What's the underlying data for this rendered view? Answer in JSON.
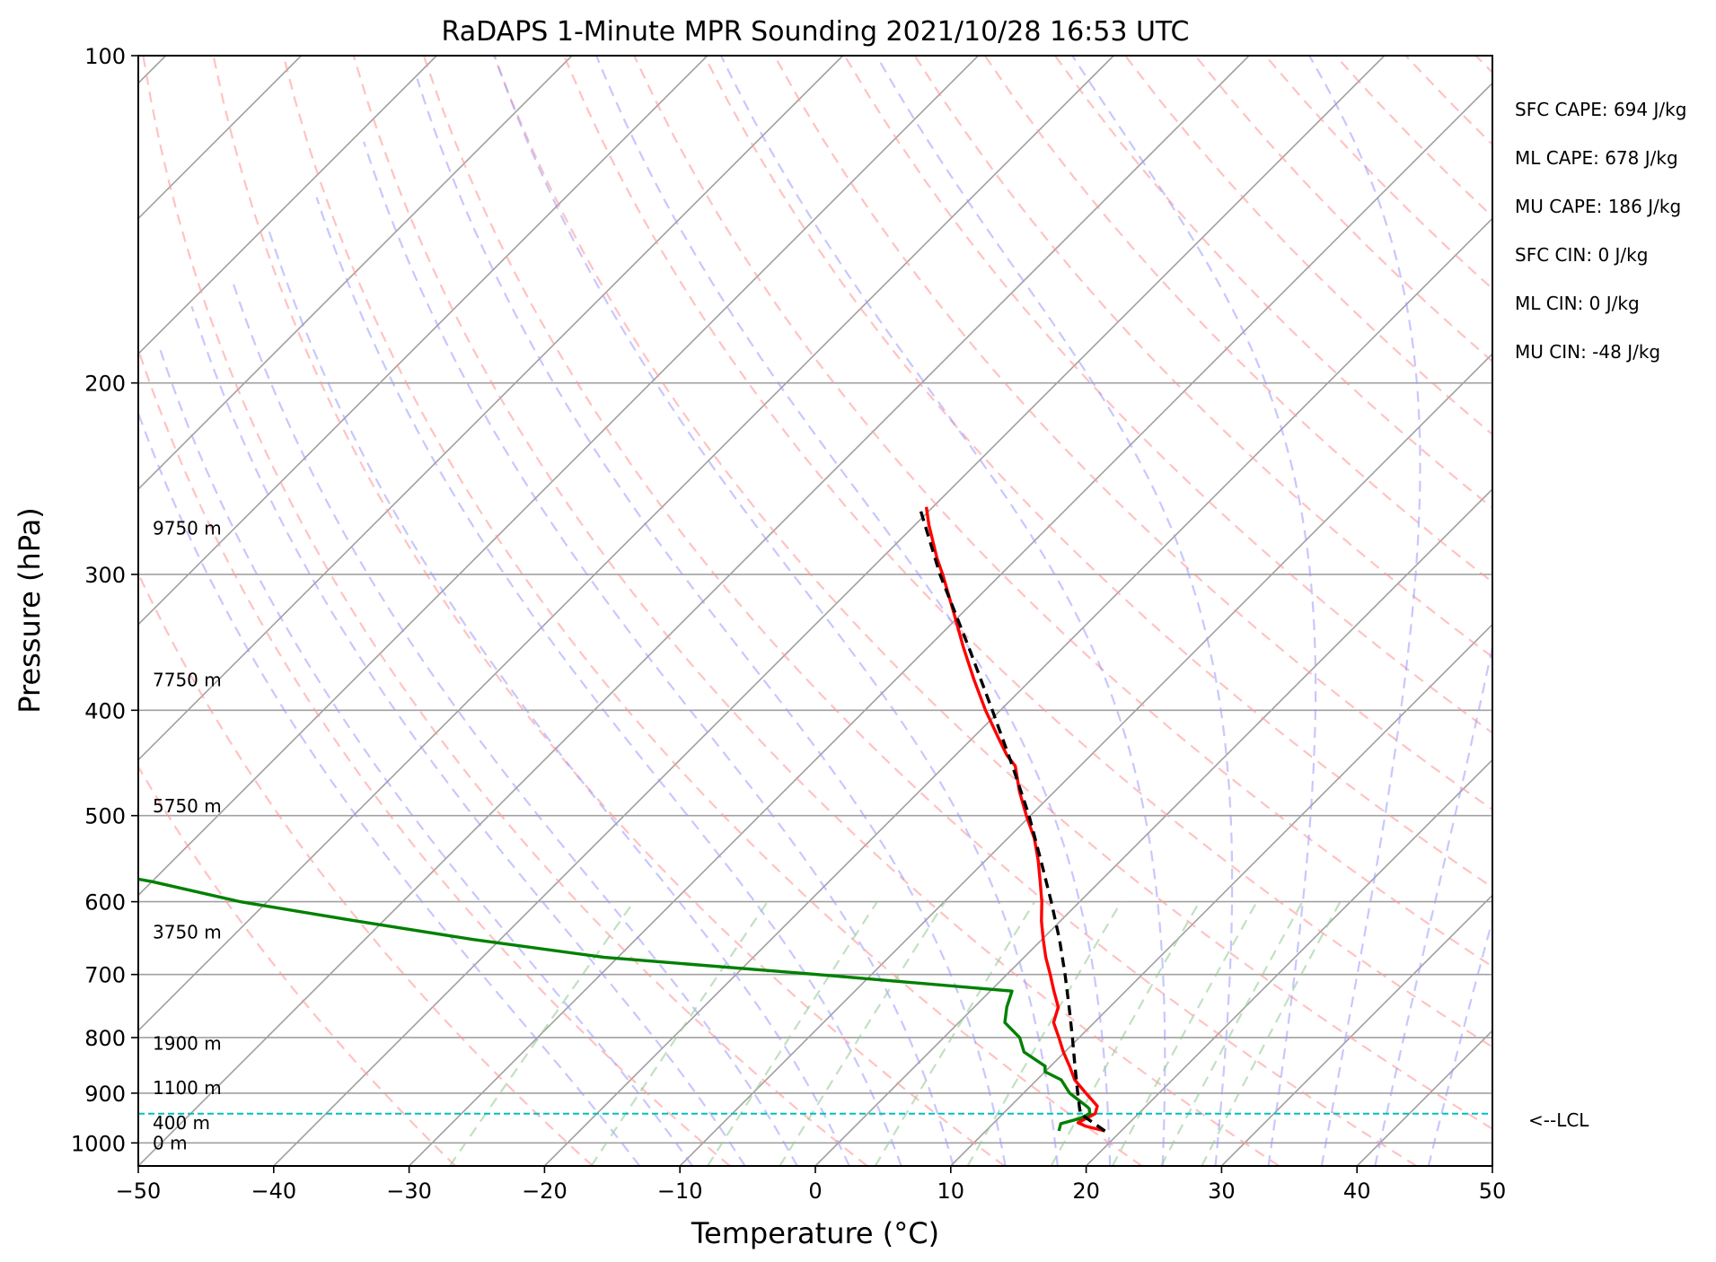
{
  "chart_data": {
    "type": "line",
    "title": "RaDAPS 1-Minute MPR Sounding 2021/10/28 16:53 UTC",
    "xlabel": "Temperature (°C)",
    "ylabel": "Pressure (hPa)",
    "xlim": [
      -50,
      50
    ],
    "ylim": [
      1050,
      100
    ],
    "y_scale": "log",
    "skew": "temperature lines skewed 45°",
    "grid": true,
    "x_ticks": [
      -50,
      -40,
      -30,
      -20,
      -10,
      0,
      10,
      20,
      30,
      40,
      50
    ],
    "x_tick_labels": [
      "−50",
      "−40",
      "−30",
      "−20",
      "−10",
      "0",
      "10",
      "20",
      "30",
      "40",
      "50"
    ],
    "y_ticks": [
      100,
      200,
      300,
      400,
      500,
      600,
      700,
      800,
      900,
      1000
    ],
    "y_tick_labels": [
      "100",
      "200",
      "300",
      "400",
      "500",
      "600",
      "700",
      "800",
      "900",
      "1000"
    ],
    "isotherm_color": "#a0a0a0",
    "dry_adiabat_color": "#ff9999",
    "moist_adiabat_color": "#9999ff",
    "mixing_ratio_color": "#99cc99",
    "series": [
      {
        "key": "temperature",
        "color": "#ff0000",
        "points": [
          {
            "p": 975,
            "t": 18.8
          },
          {
            "p": 965,
            "t": 17.0
          },
          {
            "p": 958,
            "t": 16.2
          },
          {
            "p": 952,
            "t": 16.4
          },
          {
            "p": 940,
            "t": 16.8
          },
          {
            "p": 925,
            "t": 16.4
          },
          {
            "p": 900,
            "t": 14.6
          },
          {
            "p": 875,
            "t": 12.8
          },
          {
            "p": 850,
            "t": 11.4
          },
          {
            "p": 825,
            "t": 9.9
          },
          {
            "p": 800,
            "t": 8.5
          },
          {
            "p": 775,
            "t": 7.0
          },
          {
            "p": 750,
            "t": 6.2
          },
          {
            "p": 725,
            "t": 4.7
          },
          {
            "p": 700,
            "t": 3.2
          },
          {
            "p": 675,
            "t": 1.6
          },
          {
            "p": 650,
            "t": 0.1
          },
          {
            "p": 625,
            "t": -1.4
          },
          {
            "p": 600,
            "t": -2.8
          },
          {
            "p": 575,
            "t": -4.4
          },
          {
            "p": 550,
            "t": -6.1
          },
          {
            "p": 525,
            "t": -8.0
          },
          {
            "p": 500,
            "t": -10.3
          },
          {
            "p": 475,
            "t": -12.6
          },
          {
            "p": 450,
            "t": -14.8
          },
          {
            "p": 440,
            "t": -16.2
          },
          {
            "p": 425,
            "t": -18.0
          },
          {
            "p": 400,
            "t": -21.1
          },
          {
            "p": 375,
            "t": -24.2
          },
          {
            "p": 350,
            "t": -27.4
          },
          {
            "p": 325,
            "t": -30.7
          },
          {
            "p": 300,
            "t": -34.3
          },
          {
            "p": 290,
            "t": -35.9
          },
          {
            "p": 270,
            "t": -39.0
          },
          {
            "p": 260,
            "t": -40.5
          }
        ]
      },
      {
        "key": "dewpoint",
        "color": "#008000",
        "points": [
          {
            "p": 975,
            "t": 15.4
          },
          {
            "p": 960,
            "t": 15.0
          },
          {
            "p": 950,
            "t": 16.0
          },
          {
            "p": 940,
            "t": 16.4
          },
          {
            "p": 930,
            "t": 16.0
          },
          {
            "p": 925,
            "t": 15.6
          },
          {
            "p": 900,
            "t": 13.4
          },
          {
            "p": 875,
            "t": 11.8
          },
          {
            "p": 860,
            "t": 10.0
          },
          {
            "p": 850,
            "t": 9.6
          },
          {
            "p": 825,
            "t": 7.0
          },
          {
            "p": 800,
            "t": 5.6
          },
          {
            "p": 775,
            "t": 3.4
          },
          {
            "p": 750,
            "t": 2.4
          },
          {
            "p": 725,
            "t": 1.6
          },
          {
            "p": 700,
            "t": -14.0
          },
          {
            "p": 675,
            "t": -31.0
          },
          {
            "p": 650,
            "t": -42.0
          },
          {
            "p": 625,
            "t": -52.0
          },
          {
            "p": 600,
            "t": -62.0
          },
          {
            "p": 575,
            "t": -70.0
          },
          {
            "p": 560,
            "t": -76.0
          },
          {
            "p": 550,
            "t": -76.5
          },
          {
            "p": 540,
            "t": -77.2
          },
          {
            "p": 530,
            "t": -78.0
          }
        ]
      },
      {
        "key": "parcel",
        "color": "#000000",
        "points": [
          {
            "p": 975,
            "t": 18.8
          },
          {
            "p": 940,
            "t": 15.7
          },
          {
            "p": 900,
            "t": 14.0
          },
          {
            "p": 850,
            "t": 11.8
          },
          {
            "p": 800,
            "t": 9.5
          },
          {
            "p": 750,
            "t": 7.0
          },
          {
            "p": 700,
            "t": 4.3
          },
          {
            "p": 650,
            "t": 1.3
          },
          {
            "p": 600,
            "t": -2.1
          },
          {
            "p": 550,
            "t": -5.9
          },
          {
            "p": 500,
            "t": -10.1
          },
          {
            "p": 450,
            "t": -15.0
          },
          {
            "p": 400,
            "t": -20.6
          },
          {
            "p": 350,
            "t": -27.0
          },
          {
            "p": 300,
            "t": -34.5
          },
          {
            "p": 260,
            "t": -41.0
          }
        ]
      }
    ],
    "lcl": {
      "p": 940,
      "label": "<--LCL",
      "color": "#00bfbf"
    },
    "height_labels": [
      {
        "p": 1000,
        "label": "0 m"
      },
      {
        "p": 958,
        "label": "400 m"
      },
      {
        "p": 890,
        "label": "1100 m"
      },
      {
        "p": 810,
        "label": "1900 m"
      },
      {
        "p": 640,
        "label": "3750 m"
      },
      {
        "p": 490,
        "label": "5750 m"
      },
      {
        "p": 375,
        "label": "7750 m"
      },
      {
        "p": 272,
        "label": "9750 m"
      }
    ],
    "annotations": [
      "SFC CAPE: 694 J/kg",
      "ML CAPE: 678 J/kg",
      "MU CAPE: 186 J/kg",
      "SFC CIN: 0 J/kg",
      "ML CIN: 0 J/kg",
      "MU CIN: -48 J/kg"
    ]
  }
}
